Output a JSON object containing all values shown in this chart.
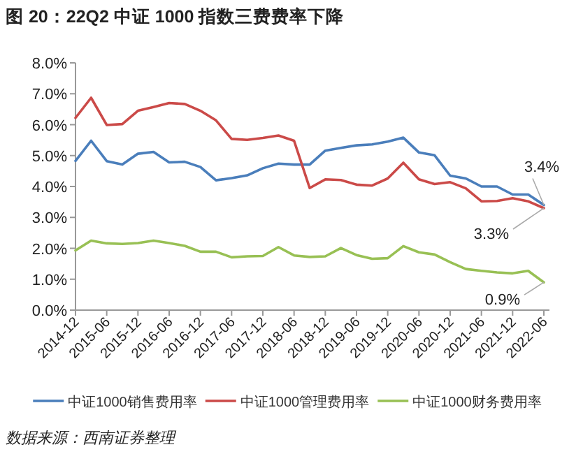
{
  "chart_data": {
    "type": "line",
    "title": "图 20：22Q2 中证 1000 指数三费费率下降",
    "categories": [
      "2014-12",
      null,
      "2015-06",
      null,
      "2015-12",
      null,
      "2016-06",
      null,
      "2016-12",
      null,
      "2017-06",
      null,
      "2017-12",
      null,
      "2018-06",
      null,
      "2018-12",
      null,
      "2019-06",
      null,
      "2019-12",
      null,
      "2020-06",
      null,
      "2020-12",
      null,
      "2021-06",
      null,
      "2021-12",
      null,
      "2022-06"
    ],
    "series": [
      {
        "name": "中证1000销售费用率",
        "color": "#4a7ebb",
        "values": [
          4.83,
          5.48,
          4.82,
          4.71,
          5.06,
          5.12,
          4.78,
          4.8,
          4.63,
          4.2,
          4.27,
          4.36,
          4.59,
          4.74,
          4.71,
          4.71,
          5.16,
          5.25,
          5.33,
          5.36,
          5.45,
          5.58,
          5.1,
          5.01,
          4.35,
          4.26,
          4.0,
          4.0,
          3.74,
          3.74,
          3.4
        ]
      },
      {
        "name": "中证1000管理费用率",
        "color": "#cb4a48",
        "values": [
          6.22,
          6.87,
          5.99,
          6.02,
          6.45,
          6.57,
          6.7,
          6.67,
          6.45,
          6.14,
          5.54,
          5.51,
          5.57,
          5.65,
          5.48,
          3.95,
          4.23,
          4.21,
          4.06,
          4.03,
          4.26,
          4.77,
          4.23,
          4.08,
          4.14,
          3.94,
          3.52,
          3.53,
          3.62,
          3.52,
          3.3
        ]
      },
      {
        "name": "中证1000财务费用率",
        "color": "#98c054",
        "values": [
          1.93,
          2.25,
          2.16,
          2.14,
          2.17,
          2.25,
          2.17,
          2.08,
          1.89,
          1.89,
          1.71,
          1.74,
          1.75,
          2.04,
          1.77,
          1.72,
          1.74,
          2.01,
          1.78,
          1.66,
          1.68,
          2.07,
          1.87,
          1.8,
          1.55,
          1.33,
          1.27,
          1.22,
          1.19,
          1.27,
          0.9
        ]
      }
    ],
    "ylim": [
      0,
      8
    ],
    "yticks": [
      {
        "value": 0,
        "label": "0.0%"
      },
      {
        "value": 1,
        "label": "1.0%"
      },
      {
        "value": 2,
        "label": "2.0%"
      },
      {
        "value": 3,
        "label": "3.0%"
      },
      {
        "value": 4,
        "label": "4.0%"
      },
      {
        "value": 5,
        "label": "5.0%"
      },
      {
        "value": 6,
        "label": "6.0%"
      },
      {
        "value": 7,
        "label": "7.0%"
      },
      {
        "value": 8,
        "label": "8.0%"
      }
    ],
    "grid": false,
    "legend": "bottom",
    "marker": "none",
    "line_style": "solid",
    "annotations": [
      {
        "text": "3.4%",
        "x": "2022-06",
        "y": 3.4
      },
      {
        "text": "3.3%",
        "x": "2022-06",
        "y": 3.3
      },
      {
        "text": "0.9%",
        "x": "2022-06",
        "y": 0.9
      },
      "数据来源：西南证券整理"
    ]
  }
}
